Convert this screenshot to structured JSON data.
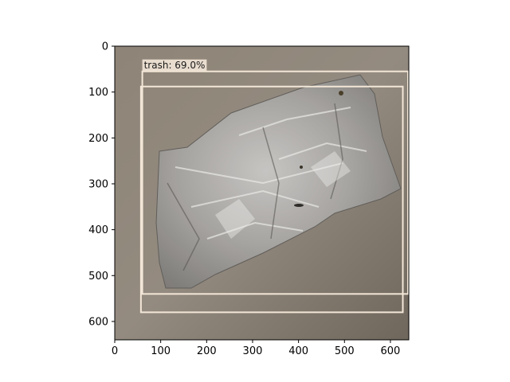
{
  "image": {
    "x_range": [
      0,
      640
    ],
    "y_range": [
      640,
      0
    ],
    "x_ticks": [
      0,
      100,
      200,
      300,
      400,
      500,
      600
    ],
    "y_ticks": [
      0,
      100,
      200,
      300,
      400,
      500,
      600
    ],
    "background_color": "#8d8478",
    "subject": "crumpled-plastic-bag"
  },
  "detections": [
    {
      "label": "trash: 69.0%",
      "box": {
        "x0": 60,
        "y0": 55,
        "x1": 640,
        "y1": 540
      },
      "color": "#f3e7d8"
    },
    {
      "label": "",
      "box": {
        "x0": 57,
        "y0": 88,
        "x1": 627,
        "y1": 580
      },
      "color": "#f3e7d8"
    }
  ]
}
